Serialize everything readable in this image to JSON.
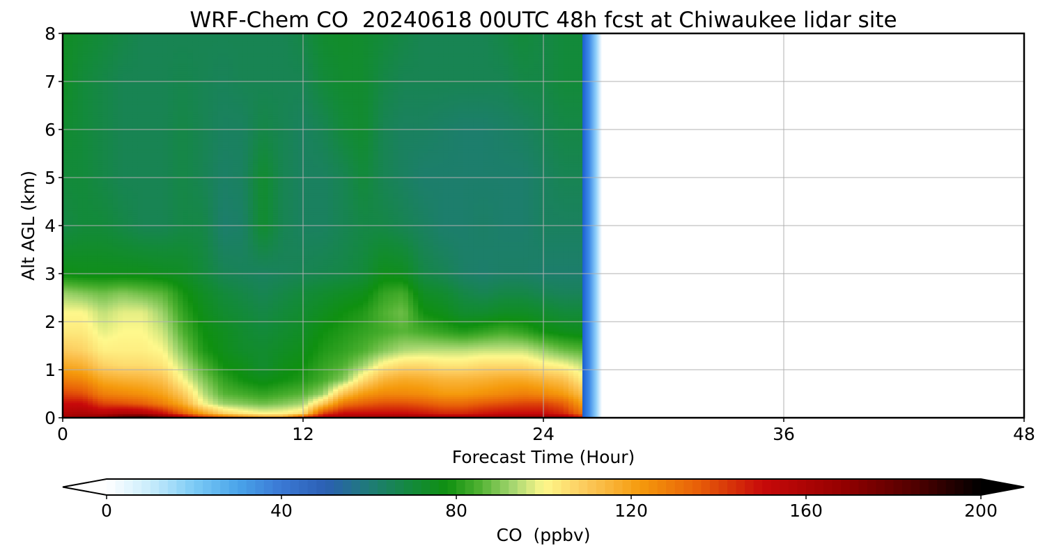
{
  "chart_data": {
    "type": "heatmap",
    "title": "WRF-Chem CO  20240618 00UTC 48h fcst at Chiwaukee lidar site",
    "xlabel": "Forecast Time (Hour)",
    "ylabel": "Alt AGL (km)",
    "xlim": [
      0,
      48
    ],
    "ylim": [
      0,
      8
    ],
    "xticks": [
      "0",
      "12",
      "24",
      "36",
      "48"
    ],
    "yticks": [
      "0",
      "1",
      "2",
      "3",
      "4",
      "5",
      "6",
      "7",
      "8"
    ],
    "grid": true,
    "data_extent_hours": 26.5,
    "colorbar": {
      "label": "CO  (ppbv)",
      "range": [
        0,
        200
      ],
      "extend": "both",
      "ticks": [
        "0",
        "40",
        "80",
        "120",
        "160",
        "200"
      ],
      "colors": {
        "0": "#ffffff",
        "10": "#c9ecfc",
        "20": "#7ccbf5",
        "30": "#4aa4ea",
        "40": "#3a78d4",
        "50": "#2b5fb4",
        "60": "#1f7b78",
        "70": "#138a3a",
        "78": "#0f9010",
        "85": "#4db030",
        "93": "#a6d670",
        "100": "#fef88c",
        "110": "#fcc85a",
        "122": "#f59a0c",
        "135": "#e86008",
        "150": "#c80a0a",
        "168": "#960000",
        "185": "#500000",
        "200": "#000000"
      }
    },
    "field": {
      "times": [
        0,
        1,
        2,
        3,
        4,
        5,
        6,
        7,
        8,
        9,
        10,
        11,
        12,
        13,
        14,
        15,
        16,
        17,
        18,
        19,
        20,
        21,
        22,
        23,
        24,
        25,
        26
      ],
      "altitudes_km": [
        0.0,
        0.1,
        0.3,
        0.5,
        0.8,
        1.1,
        1.4,
        1.8,
        2.2,
        2.6,
        3.0,
        4.0,
        5.0,
        6.0,
        7.0,
        8.0
      ],
      "values_ppbv": [
        [
          165,
          168,
          175,
          190,
          196,
          180,
          165,
          150,
          140,
          130,
          123,
          122,
          150,
          160,
          165,
          168,
          170,
          170,
          168,
          165,
          165,
          165,
          168,
          170,
          170,
          165,
          150
        ],
        [
          158,
          160,
          156,
          160,
          158,
          150,
          135,
          120,
          108,
          103,
          100,
          101,
          105,
          140,
          150,
          150,
          150,
          150,
          148,
          145,
          145,
          148,
          150,
          150,
          150,
          145,
          130
        ],
        [
          150,
          150,
          140,
          138,
          135,
          128,
          118,
          100,
          92,
          90,
          88,
          90,
          93,
          110,
          130,
          135,
          138,
          138,
          136,
          133,
          133,
          136,
          138,
          140,
          140,
          135,
          120
        ],
        [
          140,
          138,
          128,
          126,
          124,
          120,
          110,
          95,
          86,
          84,
          82,
          84,
          86,
          92,
          112,
          122,
          126,
          126,
          125,
          122,
          122,
          124,
          126,
          128,
          126,
          122,
          112
        ],
        [
          128,
          126,
          118,
          116,
          115,
          112,
          100,
          90,
          82,
          78,
          76,
          78,
          80,
          84,
          90,
          105,
          115,
          118,
          117,
          115,
          115,
          116,
          118,
          118,
          115,
          112,
          102
        ],
        [
          118,
          116,
          108,
          106,
          106,
          104,
          95,
          85,
          78,
          76,
          72,
          76,
          78,
          82,
          85,
          92,
          102,
          106,
          106,
          104,
          104,
          106,
          106,
          106,
          102,
          100,
          95
        ],
        [
          110,
          108,
          102,
          102,
          102,
          100,
          90,
          80,
          76,
          73,
          72,
          74,
          76,
          80,
          82,
          85,
          90,
          94,
          95,
          95,
          95,
          96,
          96,
          96,
          92,
          88,
          86
        ],
        [
          103,
          103,
          98,
          100,
          100,
          96,
          85,
          78,
          75,
          72,
          70,
          72,
          74,
          78,
          80,
          82,
          84,
          86,
          84,
          82,
          80,
          82,
          84,
          82,
          78,
          76,
          75
        ],
        [
          100,
          100,
          95,
          98,
          98,
          92,
          82,
          76,
          72,
          70,
          68,
          70,
          72,
          75,
          78,
          80,
          85,
          88,
          78,
          76,
          72,
          72,
          74,
          74,
          72,
          70,
          70
        ],
        [
          92,
          90,
          88,
          90,
          88,
          86,
          79,
          74,
          70,
          68,
          66,
          68,
          70,
          72,
          74,
          76,
          82,
          84,
          74,
          72,
          68,
          66,
          68,
          68,
          66,
          65,
          65
        ],
        [
          77,
          76,
          76,
          76,
          76,
          75,
          74,
          70,
          66,
          65,
          64,
          65,
          66,
          67,
          68,
          70,
          76,
          75,
          68,
          66,
          63,
          62,
          63,
          63,
          62,
          62,
          62
        ],
        [
          68,
          70,
          70,
          68,
          66,
          66,
          68,
          68,
          62,
          63,
          72,
          66,
          64,
          64,
          66,
          68,
          68,
          66,
          64,
          62,
          62,
          63,
          62,
          62,
          64,
          64,
          64
        ],
        [
          70,
          70,
          68,
          66,
          66,
          66,
          68,
          66,
          63,
          64,
          72,
          66,
          64,
          64,
          66,
          70,
          66,
          64,
          62,
          62,
          62,
          62,
          62,
          62,
          64,
          66,
          66
        ],
        [
          72,
          70,
          68,
          66,
          66,
          66,
          68,
          66,
          64,
          64,
          68,
          66,
          64,
          66,
          70,
          72,
          66,
          64,
          64,
          63,
          62,
          62,
          63,
          64,
          66,
          68,
          68
        ],
        [
          74,
          70,
          68,
          66,
          66,
          66,
          67,
          66,
          65,
          66,
          66,
          66,
          66,
          70,
          72,
          72,
          68,
          66,
          66,
          66,
          66,
          66,
          66,
          68,
          68,
          70,
          70
        ],
        [
          74,
          72,
          70,
          68,
          66,
          66,
          66,
          66,
          66,
          66,
          66,
          66,
          68,
          72,
          73,
          72,
          70,
          68,
          66,
          66,
          66,
          66,
          68,
          70,
          68,
          70,
          70
        ]
      ]
    }
  }
}
